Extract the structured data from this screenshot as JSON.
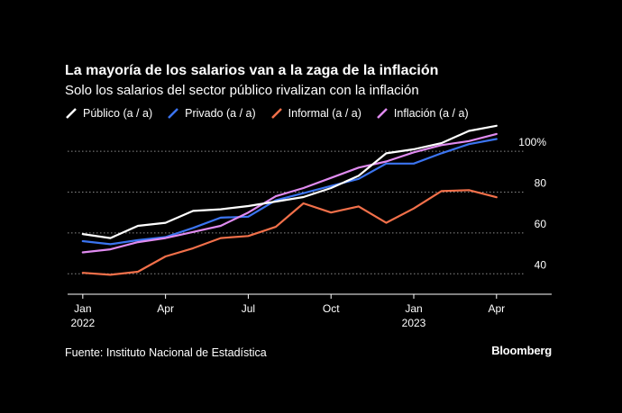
{
  "title": "La mayoría de los salarios van a la zaga de la inflación",
  "subtitle": "Solo los salarios del sector público rivalizan con la inflación",
  "source": "Fuente: Instituto Nacional de Estadística",
  "brand": "Bloomberg",
  "chart_data": {
    "type": "line",
    "x": [
      0,
      1,
      2,
      3,
      4,
      5,
      6,
      7,
      8,
      9,
      10,
      11,
      12,
      13,
      14,
      15,
      16
    ],
    "x_ticks": [
      {
        "pos": 0,
        "label": "Jan",
        "sub": "2022"
      },
      {
        "pos": 3,
        "label": "Apr",
        "sub": ""
      },
      {
        "pos": 6,
        "label": "Jul",
        "sub": ""
      },
      {
        "pos": 9,
        "label": "Oct",
        "sub": ""
      },
      {
        "pos": 12,
        "label": "Jan",
        "sub": "2023"
      },
      {
        "pos": 15,
        "label": "Apr",
        "sub": ""
      }
    ],
    "y_ticks": [
      {
        "value": 40,
        "label": "40"
      },
      {
        "value": 60,
        "label": "60"
      },
      {
        "value": 80,
        "label": "80"
      },
      {
        "value": 100,
        "label": "100%"
      }
    ],
    "ylim": [
      30,
      108
    ],
    "xlim": [
      -0.55,
      17
    ],
    "grid": true,
    "series": [
      {
        "name": "Público (a / a)",
        "color": "#ffffff",
        "values": [
          59.5,
          57.5,
          63.5,
          65,
          70.8,
          71.6,
          73.2,
          75.4,
          77.6,
          82,
          88,
          99,
          101,
          104,
          110,
          112.5,
          null
        ]
      },
      {
        "name": "Privado (a / a)",
        "color": "#3b74f0",
        "values": [
          56,
          54.5,
          56.5,
          58,
          62.5,
          67.5,
          68,
          76,
          79.5,
          83,
          86.5,
          94,
          94,
          99,
          103.5,
          106,
          null
        ]
      },
      {
        "name": "Informal (a / a)",
        "color": "#f2704a",
        "values": [
          40.5,
          39.5,
          41,
          48.5,
          52.5,
          57.5,
          58.5,
          63,
          74.5,
          70,
          73,
          65,
          72,
          80.5,
          81,
          77.5,
          null
        ]
      },
      {
        "name": "Inflación (a / a)",
        "color": "#e08bf0",
        "values": [
          50.5,
          52,
          55.5,
          57.5,
          60.5,
          63.5,
          70,
          78,
          82,
          87,
          92,
          95,
          99.5,
          103,
          105,
          108.5,
          null
        ]
      }
    ]
  }
}
